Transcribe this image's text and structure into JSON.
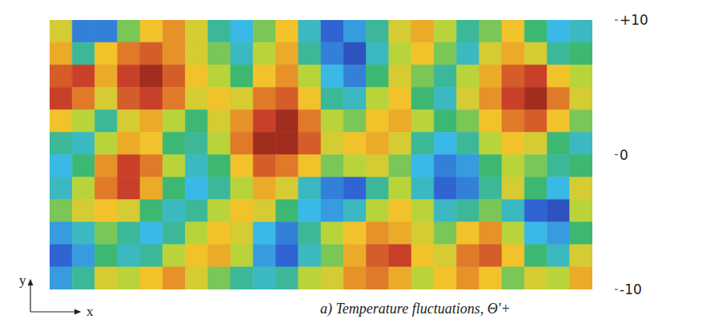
{
  "chart_data": {
    "type": "heatmap",
    "caption": "a) Temperature fluctuations, Θ'+",
    "x_label": "x",
    "y_label": "y",
    "tick_labels": false,
    "cells": [
      [
        2,
        -6,
        -6,
        0,
        3,
        5,
        2,
        -2,
        -4,
        0,
        3,
        -3,
        -7,
        -5,
        -2,
        2,
        4,
        1,
        -2,
        0,
        3,
        -1,
        -4,
        -3
      ],
      [
        4,
        -2,
        3,
        6,
        7,
        5,
        2,
        0,
        -3,
        1,
        4,
        -2,
        -6,
        -8,
        -3,
        1,
        3,
        0,
        -3,
        2,
        4,
        2,
        -2,
        -1
      ],
      [
        7,
        8,
        4,
        8,
        9,
        7,
        3,
        1,
        -1,
        3,
        5,
        1,
        -4,
        -6,
        -1,
        2,
        0,
        -2,
        1,
        4,
        7,
        8,
        3,
        1
      ],
      [
        8,
        6,
        2,
        7,
        8,
        6,
        2,
        3,
        2,
        6,
        7,
        3,
        -2,
        -3,
        1,
        3,
        -1,
        -3,
        2,
        5,
        8,
        9,
        6,
        2
      ],
      [
        3,
        1,
        -2,
        2,
        4,
        1,
        -1,
        2,
        5,
        8,
        9,
        6,
        1,
        0,
        3,
        4,
        1,
        -1,
        0,
        3,
        6,
        7,
        3,
        0
      ],
      [
        -2,
        -3,
        1,
        4,
        3,
        -1,
        -2,
        1,
        6,
        9,
        9,
        7,
        2,
        3,
        4,
        2,
        -2,
        -4,
        -2,
        1,
        3,
        2,
        -1,
        -3
      ],
      [
        -4,
        -1,
        5,
        8,
        6,
        1,
        -3,
        -1,
        3,
        7,
        6,
        3,
        0,
        1,
        2,
        0,
        -4,
        -6,
        -5,
        -1,
        1,
        0,
        -2,
        -1
      ],
      [
        -3,
        1,
        6,
        8,
        4,
        -1,
        -4,
        -2,
        1,
        4,
        2,
        -3,
        -6,
        -7,
        -2,
        1,
        -3,
        -7,
        -6,
        -2,
        2,
        -1,
        -4,
        2
      ],
      [
        0,
        2,
        3,
        2,
        -1,
        -3,
        -2,
        1,
        3,
        2,
        -1,
        -4,
        -5,
        -3,
        1,
        3,
        1,
        -3,
        -2,
        0,
        -3,
        -7,
        -8,
        1
      ],
      [
        -5,
        -3,
        0,
        -2,
        -4,
        -2,
        1,
        3,
        2,
        -4,
        -6,
        -2,
        1,
        3,
        5,
        4,
        2,
        0,
        3,
        5,
        1,
        -4,
        -5,
        -1
      ],
      [
        -7,
        -5,
        -1,
        -3,
        -2,
        1,
        3,
        4,
        1,
        -5,
        -7,
        -3,
        0,
        4,
        7,
        8,
        3,
        2,
        6,
        7,
        3,
        -1,
        -3,
        2
      ],
      [
        -5,
        -2,
        2,
        1,
        3,
        5,
        2,
        0,
        -2,
        -3,
        -2,
        1,
        2,
        5,
        6,
        4,
        1,
        3,
        5,
        3,
        0,
        2,
        1,
        4
      ]
    ],
    "colorbar": {
      "range": [
        -10,
        10
      ],
      "ticks": [
        {
          "value": 10,
          "label": "+10"
        },
        0,
        -10
      ]
    }
  }
}
